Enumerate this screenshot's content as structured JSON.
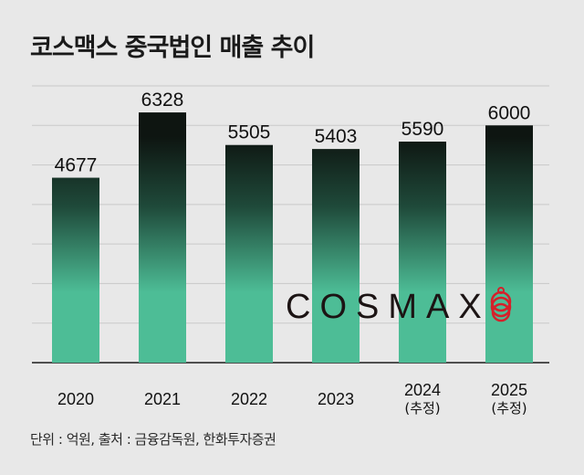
{
  "chart_data": {
    "type": "bar",
    "title": "코스맥스 중국법인 매출 추이",
    "categories": [
      "2020",
      "2021",
      "2022",
      "2023",
      "2024",
      "2025"
    ],
    "category_notes": [
      "",
      "",
      "",
      "",
      "(추정)",
      "(추정)"
    ],
    "values": [
      4677,
      6328,
      5505,
      5403,
      5590,
      6000
    ],
    "data_labels": [
      "4677",
      "6328",
      "5505",
      "5403",
      "5590",
      "6000"
    ],
    "xlabel": "",
    "ylabel": "",
    "ylim": [
      0,
      7000
    ],
    "grid": true,
    "grid_step": 1000,
    "colors": {
      "bar_top": "#0e1511",
      "bar_bottom": "#4dbd96",
      "background": "#e8e8e8",
      "logo_mark": "#d6202a"
    },
    "source_note": "단위 : 억원, 출처 : 금융감독원, 한화투자증권"
  },
  "logo": {
    "text": "COSMAX"
  }
}
